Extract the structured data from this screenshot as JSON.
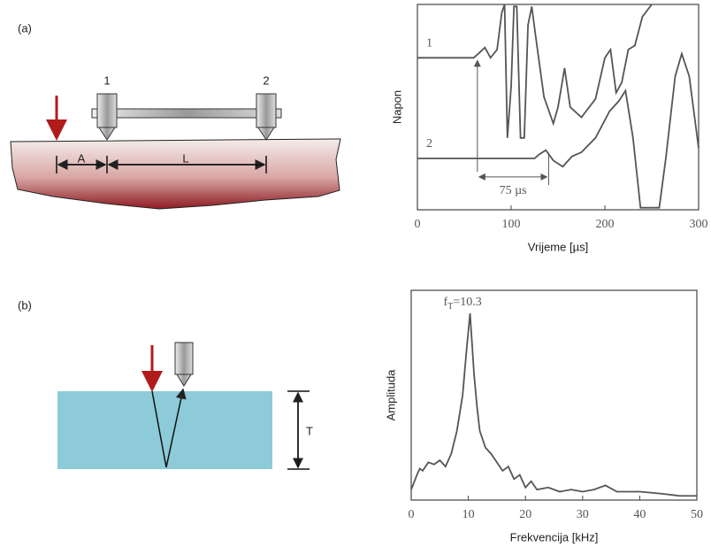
{
  "panels": [
    {
      "label": "(a)",
      "diagram": {
        "sensors": [
          "1",
          "2"
        ],
        "distances": [
          "A",
          "L"
        ]
      }
    },
    {
      "label": "(b)",
      "diagram": {
        "thickness": "T"
      }
    }
  ],
  "chart_data": [
    {
      "type": "line",
      "x_label": "Vrijeme [µs]",
      "y_label": "Napon",
      "xlim": [
        0,
        300
      ],
      "xticks": [
        0,
        100,
        200,
        300
      ],
      "ylim": [
        0,
        10
      ],
      "annotation": "75 µs",
      "series": [
        {
          "name": "1",
          "color": "#555555",
          "x": [
            0,
            60,
            65,
            72,
            78,
            85,
            90,
            93,
            96,
            100,
            103,
            106,
            110,
            114,
            118,
            122,
            126,
            135,
            145,
            150,
            157,
            163,
            175,
            190,
            200,
            206,
            212,
            218,
            225,
            232,
            240,
            250
          ],
          "values": [
            7.4,
            7.4,
            7.6,
            7.9,
            7.4,
            7.8,
            9.6,
            10,
            3.5,
            6,
            9.9,
            9.9,
            3.5,
            3.5,
            9,
            9.9,
            8.5,
            5.5,
            4.2,
            5,
            6.9,
            5,
            4.5,
            5.4,
            7.4,
            7.8,
            5.7,
            6.2,
            7.8,
            8,
            9.4,
            10
          ]
        },
        {
          "name": "2",
          "color": "#555555",
          "x": [
            0,
            125,
            130,
            137,
            145,
            155,
            165,
            175,
            190,
            205,
            215,
            222,
            230,
            238,
            258,
            265,
            275,
            282,
            290,
            300
          ],
          "values": [
            2.5,
            2.5,
            2.7,
            2.9,
            2.4,
            2.1,
            2.6,
            2.8,
            3.5,
            4.8,
            5.3,
            5.8,
            3.5,
            0.1,
            0.1,
            2.5,
            6.5,
            7.6,
            6.5,
            3
          ]
        }
      ]
    },
    {
      "type": "line",
      "x_label": "Frekvencija [kHz]",
      "y_label": "Amplituda",
      "xlim": [
        0,
        50
      ],
      "xticks": [
        0,
        10,
        20,
        30,
        40,
        50
      ],
      "ylim": [
        0,
        10
      ],
      "peak_label": [
        "f",
        "T",
        "=10.3"
      ],
      "series": [
        {
          "name": null,
          "color": "#555555",
          "x": [
            0,
            1,
            1.5,
            2,
            3,
            4,
            5,
            6,
            7,
            8,
            9,
            9.7,
            10.3,
            11,
            11.5,
            12,
            13,
            14,
            15,
            16,
            17,
            18,
            19,
            20,
            21,
            22,
            24,
            26,
            28,
            30,
            32,
            34,
            36,
            40,
            44,
            47,
            50
          ],
          "values": [
            0.5,
            1.2,
            1.5,
            1.4,
            1.8,
            1.7,
            1.9,
            1.6,
            2.2,
            3.3,
            5,
            7.2,
            8.9,
            6,
            4.5,
            3.3,
            2.5,
            2.2,
            1.8,
            1.4,
            1.6,
            1,
            1.2,
            0.6,
            0.9,
            0.5,
            0.6,
            0.4,
            0.5,
            0.4,
            0.5,
            0.7,
            0.4,
            0.4,
            0.3,
            0.2,
            0.2
          ]
        }
      ]
    }
  ]
}
